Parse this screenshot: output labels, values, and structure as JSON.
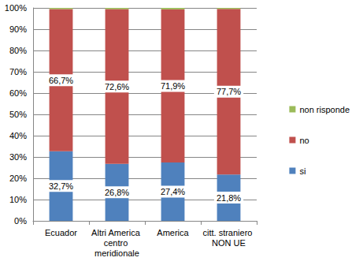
{
  "chart_data": {
    "type": "bar",
    "stacked": true,
    "categories": [
      "Ecuador",
      "Altri America centro meridionale",
      "America",
      "citt. straniero NON UE"
    ],
    "series": [
      {
        "name": "si",
        "color": "#4f81bd",
        "values": [
          32.7,
          26.8,
          27.4,
          21.8
        ],
        "value_labels": [
          "32,7%",
          "26,8%",
          "27,4%",
          "21,8%"
        ]
      },
      {
        "name": "no",
        "color": "#c0504d",
        "values": [
          66.7,
          72.6,
          71.9,
          77.7
        ],
        "value_labels": [
          "66,7%",
          "72,6%",
          "71,9%",
          "77,7%"
        ]
      },
      {
        "name": "non risponde",
        "color": "#9bbb59",
        "values": [
          0.6,
          0.6,
          0.7,
          0.5
        ]
      }
    ],
    "ylim": [
      0,
      100
    ],
    "yticks": [
      {
        "value": 0,
        "label": "0%"
      },
      {
        "value": 10,
        "label": "10%"
      },
      {
        "value": 20,
        "label": "20%"
      },
      {
        "value": 30,
        "label": "30%"
      },
      {
        "value": 40,
        "label": "40%"
      },
      {
        "value": 50,
        "label": "50%"
      },
      {
        "value": 60,
        "label": "60%"
      },
      {
        "value": 70,
        "label": "70%"
      },
      {
        "value": 80,
        "label": "80%"
      },
      {
        "value": 90,
        "label": "90%"
      },
      {
        "value": 100,
        "label": "100%"
      }
    ],
    "grid": true,
    "legend": "right",
    "data_labels": true
  }
}
